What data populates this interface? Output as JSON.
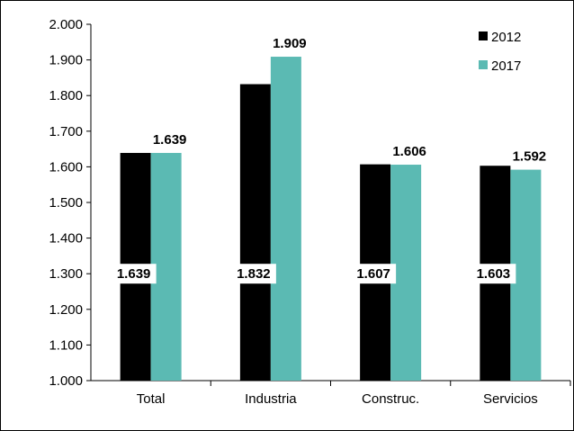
{
  "chart_data": {
    "type": "bar",
    "categories": [
      "Total",
      "Industria",
      "Construc.",
      "Servicios"
    ],
    "series": [
      {
        "name": "2012",
        "values": [
          1639,
          1832,
          1607,
          1603
        ],
        "color": "#000000"
      },
      {
        "name": "2017",
        "values": [
          1639,
          1909,
          1606,
          1592
        ],
        "color": "#5bbab3"
      }
    ],
    "data_labels": [
      [
        "1.639",
        "1.832",
        "1.607",
        "1.603"
      ],
      [
        "1.639",
        "1.909",
        "1.606",
        "1.592"
      ]
    ],
    "y_ticks": [
      1000,
      1100,
      1200,
      1300,
      1400,
      1500,
      1600,
      1700,
      1800,
      1900,
      2000
    ],
    "y_tick_labels": [
      "1.000",
      "1.100",
      "1.200",
      "1.300",
      "1.400",
      "1.500",
      "1.600",
      "1.700",
      "1.800",
      "1.900",
      "2.000"
    ],
    "ylim": [
      1000,
      2000
    ],
    "grid": false,
    "legend_position": "top-right",
    "title": "",
    "xlabel": "",
    "ylabel": ""
  }
}
